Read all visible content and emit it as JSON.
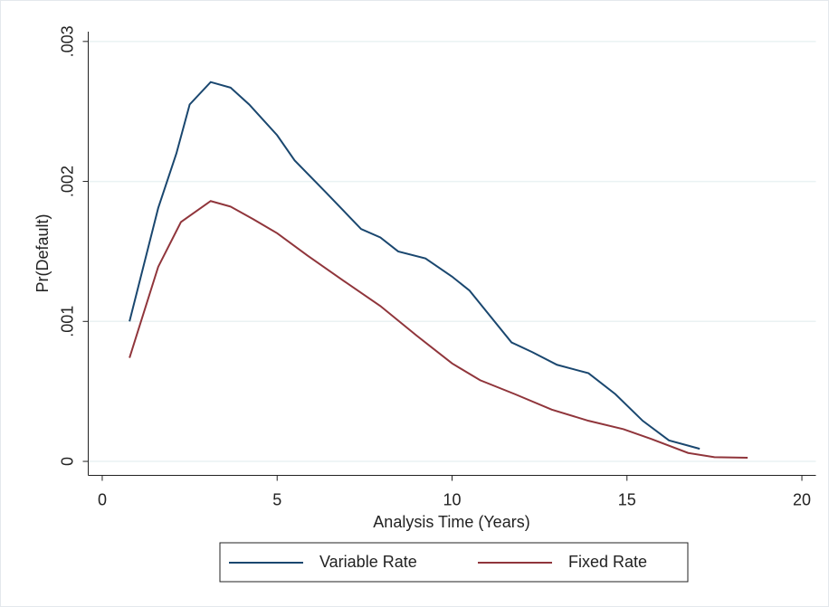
{
  "chart_data": {
    "type": "line",
    "x_label": "Analysis Time (Years)",
    "y_label": "Pr(Default)",
    "xlim": [
      -0.4,
      20.4
    ],
    "ylim": [
      -0.0001,
      0.00307
    ],
    "xticks": [
      0,
      5,
      10,
      15,
      20
    ],
    "yticks": [
      0,
      {
        "value": 0.001,
        "label": ".001"
      },
      {
        "value": 0.002,
        "label": ".002"
      },
      {
        "value": 0.003,
        "label": ".003"
      }
    ],
    "grid": true,
    "legend": "bottom",
    "series": [
      {
        "name": "Variable Rate",
        "color": "#1a476f",
        "x": [
          0.78,
          1.6,
          2.12,
          2.5,
          3.1,
          3.67,
          4.2,
          5,
          5.5,
          6.4,
          7.4,
          7.95,
          8.46,
          9.24,
          10,
          10.5,
          11.05,
          11.7,
          12.3,
          13,
          13.9,
          14.67,
          15.45,
          16.2,
          17.08
        ],
        "values": [
          0.001,
          0.00181,
          0.0022,
          0.00255,
          0.00271,
          0.00267,
          0.00255,
          0.00233,
          0.00215,
          0.00192,
          0.00166,
          0.0016,
          0.0015,
          0.00145,
          0.00132,
          0.00122,
          0.00105,
          0.00085,
          0.00078,
          0.00069,
          0.00063,
          0.00048,
          0.00029,
          0.00015,
          9e-05
        ]
      },
      {
        "name": "Fixed Rate",
        "color": "#90353b",
        "x": [
          0.78,
          1.6,
          2.25,
          3.1,
          3.67,
          4.32,
          5,
          5.87,
          6.9,
          7.95,
          8.98,
          10,
          10.8,
          11.8,
          12.85,
          13.9,
          14.9,
          15.7,
          16.75,
          17.5,
          18.45
        ],
        "values": [
          0.00074,
          0.00139,
          0.00171,
          0.00186,
          0.00182,
          0.00173,
          0.00163,
          0.00147,
          0.00129,
          0.00111,
          0.0009,
          0.0007,
          0.00058,
          0.00048,
          0.00037,
          0.00029,
          0.00023,
          0.00016,
          6e-05,
          3e-05,
          2.6e-05
        ]
      }
    ]
  }
}
